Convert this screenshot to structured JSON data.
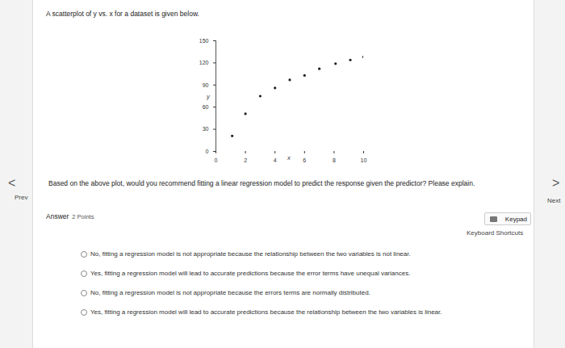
{
  "intro": "A scatterplot of y vs. x for a dataset is given below.",
  "chart_data": {
    "type": "scatter",
    "x_label": "x",
    "y_label": "y",
    "x": [
      1.1,
      2.0,
      3.0,
      4.0,
      5.0,
      6.0,
      7.0,
      8.1,
      9.1,
      10.0
    ],
    "values": [
      21,
      51,
      75,
      86,
      97,
      103,
      112,
      119,
      124,
      128
    ],
    "xlim": [
      0,
      10
    ],
    "ylim": [
      0,
      150
    ],
    "xticks": [
      0,
      2,
      4,
      6,
      8,
      10
    ],
    "yticks": [
      0,
      30,
      60,
      90,
      120,
      150
    ],
    "color": "#222222",
    "marker": "circle",
    "grid": false
  },
  "question": "Based on the above plot, would you recommend fitting a linear regression model to predict the response given the predictor? Please explain.",
  "nav": {
    "prev_arrow": "<",
    "prev": "Prev",
    "next_arrow": ">",
    "next": "Next"
  },
  "answer": {
    "label": "Answer",
    "points": "2 Points"
  },
  "keypad": {
    "button": "Keypad",
    "shortcuts": "Keyboard Shortcuts"
  },
  "options": [
    "No, fitting a regression model is not appropriate because the relationship between the two variables is not linear.",
    "Yes, fitting a regression model will lead to accurate predictions because the error terms have unequal variances.",
    "No, fitting a regression model is not appropriate because the errors terms are normally distributed.",
    "Yes, fitting a regression model will lead to accurate predictions because the relationship between the two variables is linear."
  ]
}
